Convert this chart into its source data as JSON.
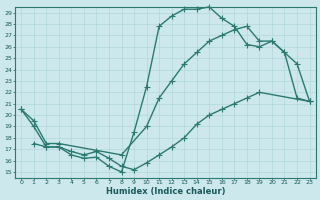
{
  "xlabel": "Humidex (Indice chaleur)",
  "bg_color": "#cce8ec",
  "grid_color": "#b0d8dc",
  "line_color": "#2a7a70",
  "xlim": [
    -0.5,
    23.5
  ],
  "ylim": [
    14.5,
    29.5
  ],
  "xticks": [
    0,
    1,
    2,
    3,
    4,
    5,
    6,
    7,
    8,
    9,
    10,
    11,
    12,
    13,
    14,
    15,
    16,
    17,
    18,
    19,
    20,
    21,
    22,
    23
  ],
  "yticks": [
    15,
    16,
    17,
    18,
    19,
    20,
    21,
    22,
    23,
    24,
    25,
    26,
    27,
    28,
    29
  ],
  "curve1_x": [
    0,
    1,
    2,
    3,
    4,
    5,
    6,
    7,
    8,
    9,
    10,
    11,
    12,
    13,
    14,
    15,
    16,
    17,
    18,
    19,
    20,
    21,
    22,
    23
  ],
  "curve1_y": [
    20.5,
    19.0,
    17.2,
    17.2,
    16.5,
    16.2,
    16.3,
    15.5,
    15.0,
    18.5,
    22.5,
    27.8,
    28.7,
    29.3,
    29.3,
    29.5,
    28.5,
    27.8,
    26.2,
    26.0,
    26.5,
    25.5,
    21.5,
    21.2
  ],
  "curve2_x": [
    1,
    2,
    3,
    4,
    5,
    6,
    7,
    8,
    9,
    10,
    11,
    12,
    13,
    14,
    15,
    16,
    17,
    18,
    19,
    23
  ],
  "curve2_y": [
    17.5,
    17.2,
    17.2,
    16.8,
    16.5,
    16.8,
    16.2,
    15.5,
    15.2,
    15.8,
    16.5,
    17.2,
    18.0,
    19.2,
    20.0,
    20.5,
    21.0,
    21.5,
    22.0,
    21.2
  ],
  "curve3_x": [
    0,
    1,
    2,
    3,
    8,
    10,
    11,
    12,
    13,
    14,
    15,
    16,
    17,
    18,
    19,
    20,
    21,
    22,
    23
  ],
  "curve3_y": [
    20.5,
    19.5,
    17.5,
    17.5,
    16.5,
    19.0,
    21.5,
    23.0,
    24.5,
    25.5,
    26.5,
    27.0,
    27.5,
    27.8,
    26.5,
    26.5,
    25.5,
    24.5,
    21.2
  ],
  "marker": "+",
  "markersize": 4,
  "linewidth": 1.0
}
